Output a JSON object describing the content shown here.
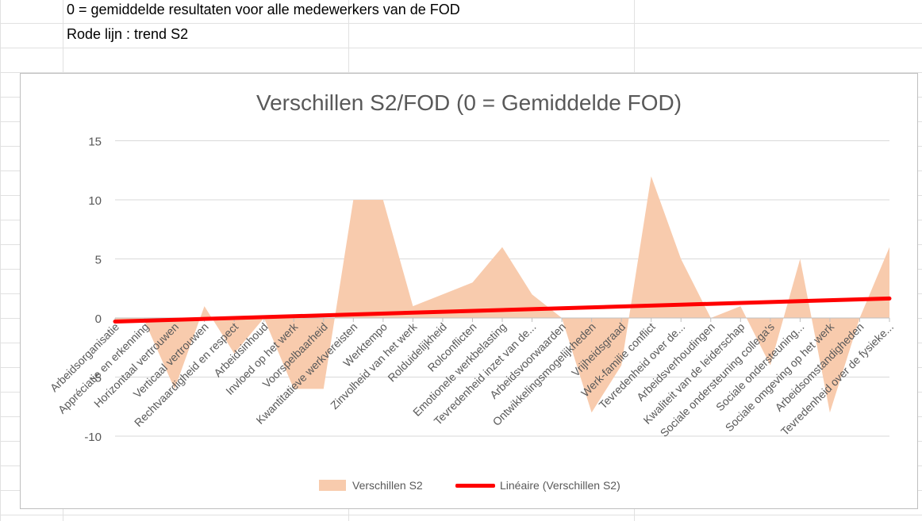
{
  "sheet": {
    "note1": "0 = gemiddelde resultaten voor alle medewerkers van de FOD",
    "note2": "Rode lijn : trend S2"
  },
  "colors": {
    "area": "#f8cbad",
    "trend": "#ff0000",
    "grid": "#d9d9d9",
    "text": "#595959",
    "sheet_grid": "#e1e1e1"
  },
  "chart_data": {
    "type": "area",
    "title": "Verschillen S2/FOD (0 = Gemiddelde FOD)",
    "xlabel": "",
    "ylabel": "",
    "ylim": [
      -10,
      15
    ],
    "yticks": [
      15,
      10,
      5,
      0,
      -5,
      -10
    ],
    "grid": true,
    "legend": "bottom",
    "categories": [
      "Arbeidsorganisatie",
      "Appréciatie en erkenning",
      "Horizontaal vertrouwen",
      "Verticaal vertrouwen",
      "Rechtvaardigheid en respect",
      "Arbeidsinhoud",
      "Invloed op het werk",
      "Voorspelbaarheid",
      "Kwantitatieve werkvereisten",
      "Werktempo",
      "Zinvolheid van het werk",
      "Rolduidelijkheid",
      "Rolconflicten",
      "Emotionele werkbelasting",
      "Tevredenheid inzet van de...",
      "Arbeidsvoorwaarden",
      "Ontwikkelingsmogelijkheden",
      "Vrijheidsgraad",
      "Werk-familie conflict",
      "Tevredenheid over de...",
      "Arbeidsverhoudingen",
      "Kwaliteit van de leiderschap",
      "Sociale ondersteuning collega's",
      "Sociale ondersteuning...",
      "Sociale omgeving op het werk",
      "Arbeidsomstandigheden",
      "Tevredenheid over de fysieke..."
    ],
    "series": [
      {
        "name": "Verschillen S2",
        "values": [
          -0.3,
          -0.3,
          -6,
          1,
          -3,
          0,
          -6,
          -6,
          10,
          10,
          1,
          2,
          3,
          6,
          2,
          0,
          -8,
          -4,
          12,
          5,
          0,
          1,
          -4,
          5,
          -8,
          0,
          6
        ]
      }
    ],
    "trendline": {
      "name": "Linéaire (Verschillen S2)",
      "start": -0.3,
      "end": 1.65
    }
  }
}
